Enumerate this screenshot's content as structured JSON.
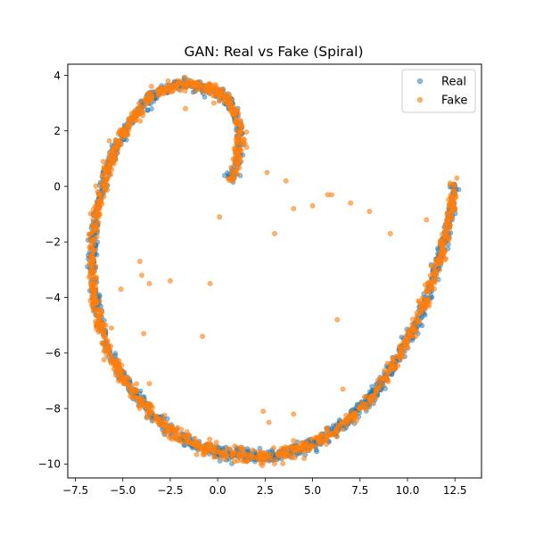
{
  "chart_data": {
    "type": "scatter",
    "title": "GAN: Real vs Fake (Spiral)",
    "xlabel": "",
    "ylabel": "",
    "xlim": [
      -7.9,
      13.9
    ],
    "ylim": [
      -10.5,
      4.4
    ],
    "xticks": [
      -7.5,
      -5.0,
      -2.5,
      0.0,
      2.5,
      5.0,
      7.5,
      10.0,
      12.5
    ],
    "xtick_labels": [
      "−7.5",
      "−5.0",
      "−2.5",
      "0.0",
      "2.5",
      "5.0",
      "7.5",
      "10.0",
      "12.5"
    ],
    "yticks": [
      4,
      2,
      0,
      -2,
      -4,
      -6,
      -8,
      -10
    ],
    "ytick_labels": [
      "4",
      "2",
      "0",
      "−2",
      "−4",
      "−6",
      "−8",
      "−10"
    ],
    "grid": false,
    "legend_position": "top-right",
    "spiral_path": [
      [
        0.6,
        0.2
      ],
      [
        1.0,
        0.8
      ],
      [
        1.2,
        1.8
      ],
      [
        1.0,
        2.6
      ],
      [
        0.3,
        3.3
      ],
      [
        -0.8,
        3.6
      ],
      [
        -1.8,
        3.7
      ],
      [
        -2.5,
        3.6
      ],
      [
        -3.4,
        3.3
      ],
      [
        -4.3,
        2.6
      ],
      [
        -5.2,
        1.7
      ],
      [
        -5.8,
        0.7
      ],
      [
        -6.2,
        -0.3
      ],
      [
        -6.5,
        -1.3
      ],
      [
        -6.6,
        -2.3
      ],
      [
        -6.6,
        -3.5
      ],
      [
        -6.3,
        -4.7
      ],
      [
        -5.8,
        -5.9
      ],
      [
        -4.9,
        -7.0
      ],
      [
        -3.7,
        -8.0
      ],
      [
        -2.5,
        -8.8
      ],
      [
        -1.0,
        -9.4
      ],
      [
        1.0,
        -9.7
      ],
      [
        3.0,
        -9.7
      ],
      [
        5.0,
        -9.3
      ],
      [
        6.8,
        -8.5
      ],
      [
        8.2,
        -7.5
      ],
      [
        9.4,
        -6.3
      ],
      [
        10.5,
        -4.9
      ],
      [
        11.4,
        -3.3
      ],
      [
        12.0,
        -1.8
      ],
      [
        12.4,
        -0.5
      ],
      [
        12.5,
        0.1
      ]
    ],
    "series": [
      {
        "name": "Real",
        "color": "#1f77b4",
        "points": [
          [
            0.6,
            0.2
          ],
          [
            1.0,
            0.8
          ],
          [
            1.2,
            1.8
          ],
          [
            1.0,
            2.6
          ],
          [
            0.3,
            3.3
          ],
          [
            -0.8,
            3.6
          ],
          [
            -1.8,
            3.7
          ],
          [
            -2.5,
            3.6
          ],
          [
            -3.4,
            3.3
          ],
          [
            -4.3,
            2.6
          ],
          [
            -5.2,
            1.7
          ],
          [
            -5.8,
            0.7
          ],
          [
            -6.2,
            -0.3
          ],
          [
            -6.5,
            -1.3
          ],
          [
            -6.6,
            -2.3
          ],
          [
            -6.6,
            -3.5
          ],
          [
            -6.3,
            -4.7
          ],
          [
            -5.8,
            -5.9
          ],
          [
            -4.9,
            -7.0
          ],
          [
            -3.7,
            -8.0
          ],
          [
            -2.5,
            -8.8
          ],
          [
            -1.0,
            -9.4
          ],
          [
            1.0,
            -9.7
          ],
          [
            3.0,
            -9.7
          ],
          [
            5.0,
            -9.3
          ],
          [
            6.8,
            -8.5
          ],
          [
            8.2,
            -7.5
          ],
          [
            9.4,
            -6.3
          ],
          [
            10.5,
            -4.9
          ],
          [
            11.4,
            -3.3
          ],
          [
            12.0,
            -1.8
          ],
          [
            12.4,
            -0.5
          ],
          [
            12.5,
            0.1
          ]
        ]
      },
      {
        "name": "Fake",
        "color": "#ff7f0e",
        "points": [
          [
            1.0,
            0.6
          ],
          [
            1.2,
            2.0
          ],
          [
            0.5,
            3.0
          ],
          [
            -1.0,
            3.5
          ],
          [
            -2.2,
            3.6
          ],
          [
            -3.5,
            3.1
          ],
          [
            -4.6,
            2.3
          ],
          [
            -5.5,
            1.2
          ],
          [
            -6.0,
            0.1
          ],
          [
            -6.4,
            -1.0
          ],
          [
            -6.6,
            -2.5
          ],
          [
            -6.5,
            -3.8
          ],
          [
            -6.0,
            -5.3
          ],
          [
            -5.4,
            -6.5
          ],
          [
            -4.3,
            -7.6
          ],
          [
            -3.0,
            -8.5
          ],
          [
            -1.6,
            -9.2
          ],
          [
            0.2,
            -9.6
          ],
          [
            2.2,
            -9.8
          ],
          [
            4.0,
            -9.5
          ],
          [
            5.8,
            -9.0
          ],
          [
            7.5,
            -8.0
          ],
          [
            8.8,
            -6.9
          ],
          [
            9.9,
            -5.6
          ],
          [
            10.9,
            -4.1
          ],
          [
            11.7,
            -2.6
          ],
          [
            12.2,
            -1.2
          ],
          [
            12.5,
            -0.2
          ],
          [
            12.6,
            0.3
          ],
          [
            2.6,
            0.5
          ],
          [
            3.6,
            0.2
          ],
          [
            4.0,
            -0.8
          ],
          [
            5.0,
            -0.7
          ],
          [
            5.8,
            -0.3
          ],
          [
            6.0,
            -0.3
          ],
          [
            7.0,
            -0.6
          ],
          [
            8.0,
            -0.9
          ],
          [
            9.1,
            -1.7
          ],
          [
            11.0,
            -1.2
          ],
          [
            3.0,
            -1.7
          ],
          [
            -1.7,
            2.8
          ],
          [
            -0.2,
            3.0
          ],
          [
            0.1,
            -1.1
          ],
          [
            -4.1,
            -2.7
          ],
          [
            -4.0,
            -3.2
          ],
          [
            -3.6,
            -3.5
          ],
          [
            -2.5,
            -3.4
          ],
          [
            -0.4,
            -3.5
          ],
          [
            -3.9,
            -5.3
          ],
          [
            -0.8,
            -5.4
          ],
          [
            -3.6,
            -7.1
          ],
          [
            6.3,
            -4.8
          ],
          [
            2.4,
            -8.1
          ],
          [
            2.7,
            -8.5
          ],
          [
            4.0,
            -8.2
          ],
          [
            -5.1,
            -3.7
          ],
          [
            -5.6,
            -5.1
          ],
          [
            6.6,
            -7.3
          ],
          [
            8.0,
            -7.7
          ],
          [
            -6.7,
            -3.1
          ]
        ]
      }
    ]
  }
}
